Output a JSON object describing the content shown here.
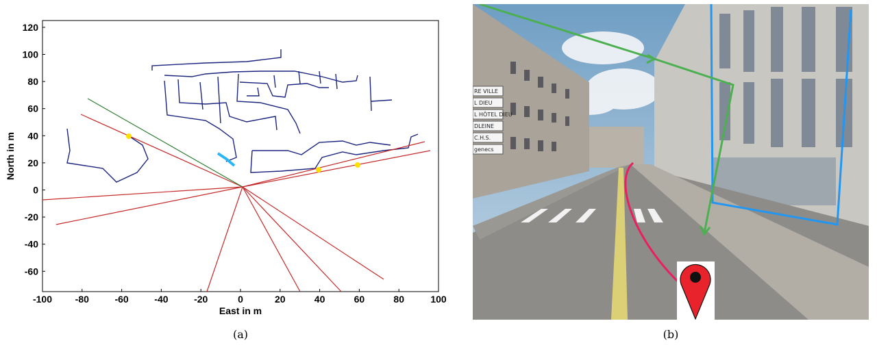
{
  "captions": {
    "left": "(a)",
    "right": "(b)"
  },
  "map_plot": {
    "xlabel": "East in m",
    "ylabel": "North in m",
    "xlim": [
      -100,
      100
    ],
    "ylim": [
      -75,
      125
    ],
    "x_ticks": [
      "-100",
      "-80",
      "-60",
      "-40",
      "-20",
      "0",
      "20",
      "40",
      "60",
      "80",
      "100"
    ],
    "y_ticks": [
      "120",
      "100",
      "80",
      "60",
      "40",
      "20",
      "0",
      "-20",
      "-40",
      "-60"
    ],
    "colors": {
      "streets": "#1a237e",
      "rays": "#c62828",
      "path": "#2e7d32",
      "highlight": "#29b6f6",
      "markers": "#ffe000"
    }
  },
  "street_view": {
    "signs": [
      "RE VILLE",
      "L DIEU",
      "L HÔTEL DIEU",
      "DLEINE",
      "C.H.S.",
      "genecs"
    ],
    "colors": {
      "sky": "#7aa7c9",
      "facade_outline": "#2196f3",
      "route": "#4caf50",
      "pink_route": "#e91e63",
      "pin": "#e8232b"
    }
  }
}
